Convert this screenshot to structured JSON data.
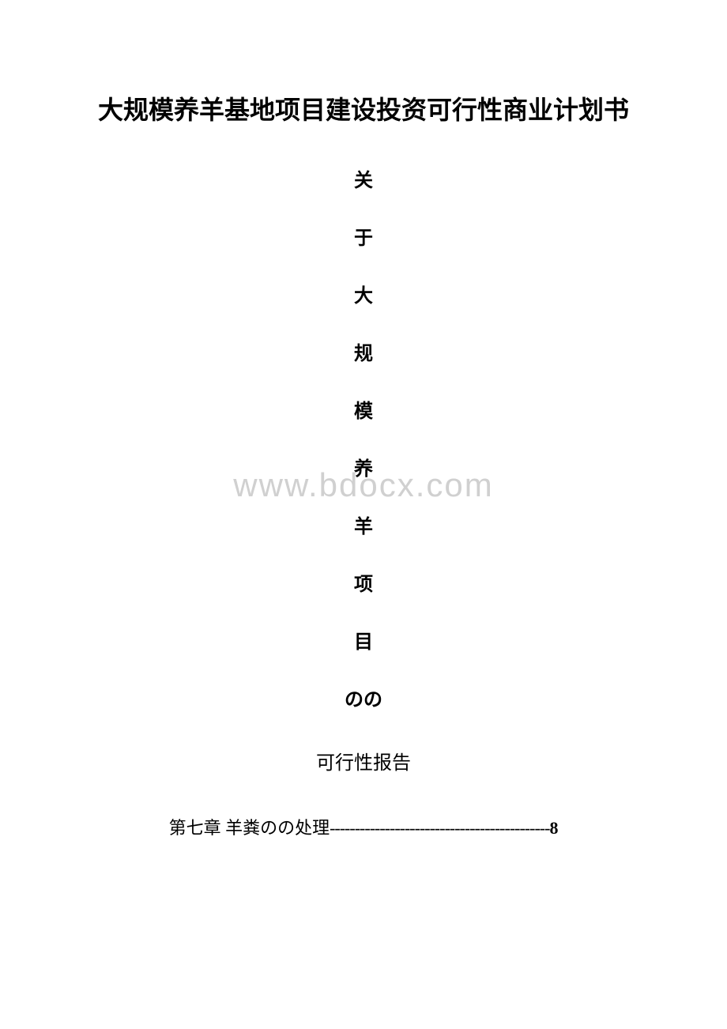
{
  "document": {
    "title": "大规模养羊基地项目建设投资可行性商业计划书",
    "vertical_text": [
      "关",
      "于",
      "大",
      "规",
      "模",
      "养",
      "羊",
      "项",
      "目",
      "のの"
    ],
    "subtitle": "可行性报告",
    "watermark": "www.bdocx.com",
    "toc": {
      "chapter_label": "第七章 羊粪のの处理",
      "dashes": "--------------------------------------------",
      "page": "8"
    },
    "colors": {
      "text": "#000000",
      "background": "#ffffff",
      "watermark": "#d0d0d0"
    },
    "typography": {
      "title_fontsize": 32,
      "body_fontsize": 24,
      "toc_fontsize": 22,
      "watermark_fontsize": 42,
      "font_family": "SimSun"
    }
  }
}
